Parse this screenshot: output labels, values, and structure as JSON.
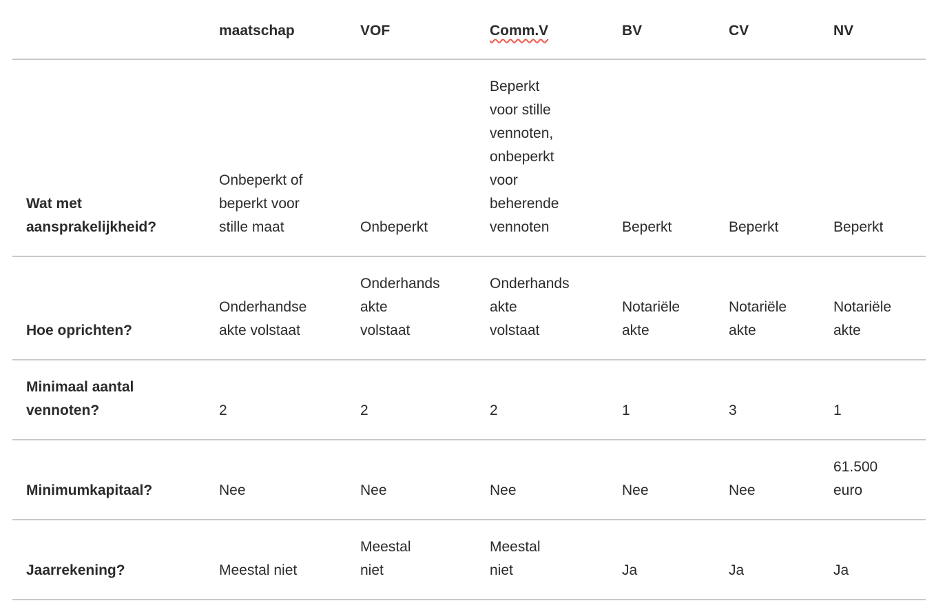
{
  "colors": {
    "text": "#2b2b2b",
    "rule": "#c9c9c9",
    "spellcheck_underline": "#f05b50",
    "background": "#ffffff"
  },
  "table": {
    "columns": [
      {
        "label": "",
        "misspelled": false
      },
      {
        "label": "maatschap",
        "misspelled": false
      },
      {
        "label": "VOF",
        "misspelled": false
      },
      {
        "label": "Comm.V",
        "misspelled": true
      },
      {
        "label": "BV",
        "misspelled": false
      },
      {
        "label": "CV",
        "misspelled": false
      },
      {
        "label": "NV",
        "misspelled": false
      }
    ],
    "rows": [
      {
        "label": "Wat met\naansprakelijkheid?",
        "cells": [
          "Onbeperkt of\nbeperkt voor\nstille maat",
          "Onbeperkt",
          "Beperkt\nvoor stille\nvennoten,\nonbeperkt\nvoor\nbeherende\nvennoten",
          "Beperkt",
          "Beperkt",
          "Beperkt"
        ]
      },
      {
        "label": "Hoe oprichten?",
        "cells": [
          "Onderhandse\nakte volstaat",
          "Onderhands\nakte\nvolstaat",
          "Onderhands\nakte\nvolstaat",
          "Notariële\nakte",
          "Notariële\nakte",
          "Notariële\nakte"
        ]
      },
      {
        "label": "Minimaal aantal\nvennoten?",
        "cells": [
          "2",
          "2",
          "2",
          "1",
          "3",
          "1"
        ]
      },
      {
        "label": "Minimumkapitaal?",
        "cells": [
          "Nee",
          "Nee",
          "Nee",
          "Nee",
          "Nee",
          "61.500\neuro"
        ]
      },
      {
        "label": "Jaarrekening?",
        "cells": [
          "Meestal niet",
          "Meestal\nniet",
          "Meestal\nniet",
          "Ja",
          "Ja",
          "Ja"
        ]
      }
    ]
  }
}
